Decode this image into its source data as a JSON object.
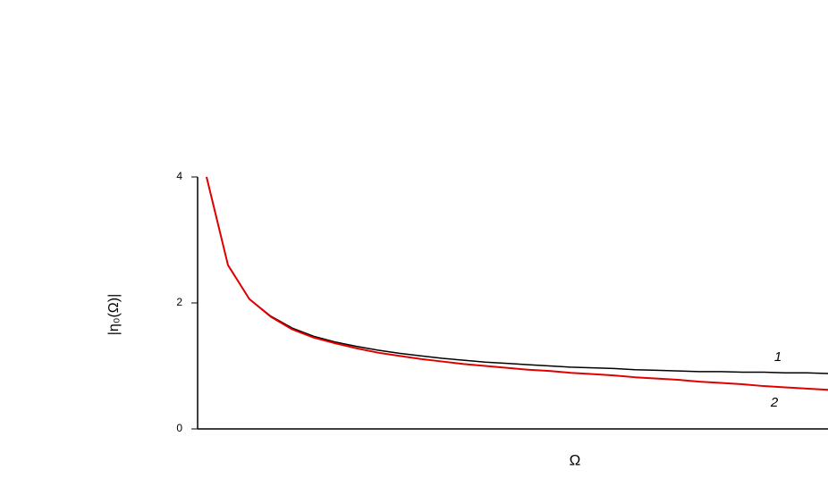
{
  "chart_data": {
    "type": "line",
    "ylabel": "|η₀(Ω)|",
    "xlabel": "Ω",
    "categories": [
      null,
      null,
      null,
      null,
      null,
      null,
      null,
      null,
      null,
      null,
      null,
      null,
      null,
      null,
      null,
      null,
      null,
      null,
      null,
      null,
      null,
      null,
      null,
      null,
      null,
      null,
      null,
      null,
      null,
      null
    ],
    "series": [
      {
        "name": "1",
        "color": "#000000",
        "values": [
          4.0,
          2.6,
          2.06,
          1.79,
          1.6,
          1.47,
          1.38,
          1.31,
          1.25,
          1.2,
          1.16,
          1.12,
          1.09,
          1.06,
          1.04,
          1.02,
          1.0,
          0.98,
          0.97,
          0.96,
          0.94,
          0.93,
          0.92,
          0.91,
          0.91,
          0.9,
          0.9,
          0.89,
          0.89,
          0.88
        ]
      },
      {
        "name": "2",
        "color": "#e00000",
        "values": [
          4.0,
          2.6,
          2.06,
          1.78,
          1.58,
          1.45,
          1.36,
          1.28,
          1.21,
          1.16,
          1.11,
          1.07,
          1.03,
          1.0,
          0.97,
          0.94,
          0.92,
          0.89,
          0.87,
          0.85,
          0.82,
          0.8,
          0.78,
          0.75,
          0.73,
          0.71,
          0.68,
          0.66,
          0.64,
          0.62
        ]
      }
    ],
    "ylim": [
      0,
      4
    ],
    "yticks": [
      0,
      2,
      4
    ]
  }
}
